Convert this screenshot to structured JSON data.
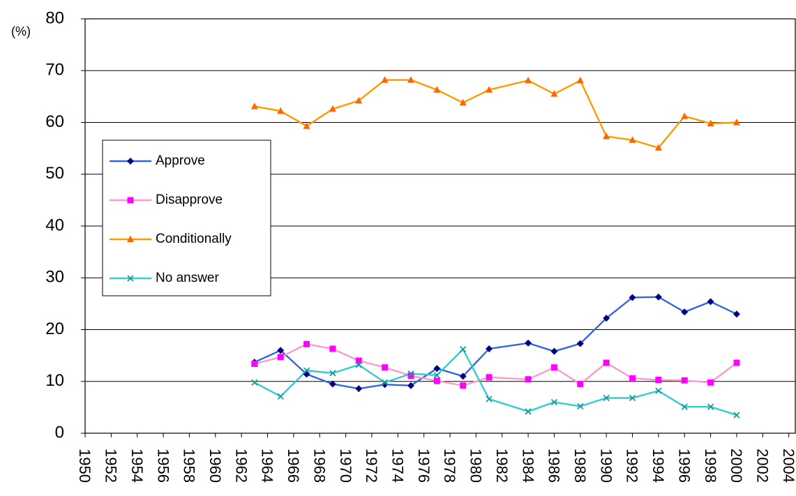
{
  "chart_data": {
    "type": "line",
    "y_unit": "(%)",
    "x": [
      1963,
      1965,
      1967,
      1969,
      1971,
      1973,
      1975,
      1977,
      1979,
      1981,
      1984,
      1986,
      1988,
      1990,
      1992,
      1994,
      1996,
      1998,
      2000
    ],
    "series": [
      {
        "name": "Approve",
        "color": "#3366dd",
        "marker_color": "#000080",
        "marker": "diamond",
        "values": [
          13.7,
          16.0,
          11.4,
          9.5,
          8.6,
          9.4,
          9.2,
          12.5,
          11.0,
          16.3,
          17.4,
          15.8,
          17.3,
          22.2,
          26.2,
          26.3,
          23.4,
          25.4,
          23.0
        ]
      },
      {
        "name": "Disapprove",
        "color": "#ff99cc",
        "marker_color": "#ff00ff",
        "marker": "square",
        "values": [
          13.4,
          14.7,
          17.2,
          16.3,
          14.0,
          12.7,
          11.1,
          10.1,
          9.2,
          10.8,
          10.4,
          12.7,
          9.5,
          13.6,
          10.6,
          10.3,
          10.2,
          9.8,
          13.6
        ]
      },
      {
        "name": "Conditionally",
        "color": "#ff9900",
        "marker_color": "#ff6600",
        "marker": "triangle",
        "values": [
          63.1,
          62.2,
          59.3,
          62.6,
          64.2,
          68.2,
          68.2,
          66.3,
          63.8,
          66.3,
          68.1,
          65.5,
          68.1,
          57.3,
          56.6,
          55.1,
          61.2,
          59.8,
          60.0
        ]
      },
      {
        "name": "No answer",
        "color": "#33cccc",
        "marker_color": "#1a9999",
        "marker": "x",
        "values": [
          9.8,
          7.1,
          12.1,
          11.6,
          13.2,
          9.8,
          11.5,
          11.2,
          16.2,
          6.6,
          4.2,
          6.0,
          5.2,
          6.8,
          6.8,
          8.2,
          5.1,
          5.1,
          3.5
        ]
      }
    ],
    "xlim": [
      1950,
      2004.5
    ],
    "xticks": [
      1950,
      1952,
      1954,
      1956,
      1958,
      1960,
      1962,
      1964,
      1966,
      1968,
      1970,
      1972,
      1974,
      1976,
      1978,
      1980,
      1982,
      1984,
      1986,
      1988,
      1990,
      1992,
      1994,
      1996,
      1998,
      2000,
      2002,
      2004
    ],
    "ylim": [
      0,
      80
    ],
    "yticks": [
      0,
      10,
      20,
      30,
      40,
      50,
      60,
      70,
      80
    ],
    "grid": true,
    "legend": "left"
  }
}
